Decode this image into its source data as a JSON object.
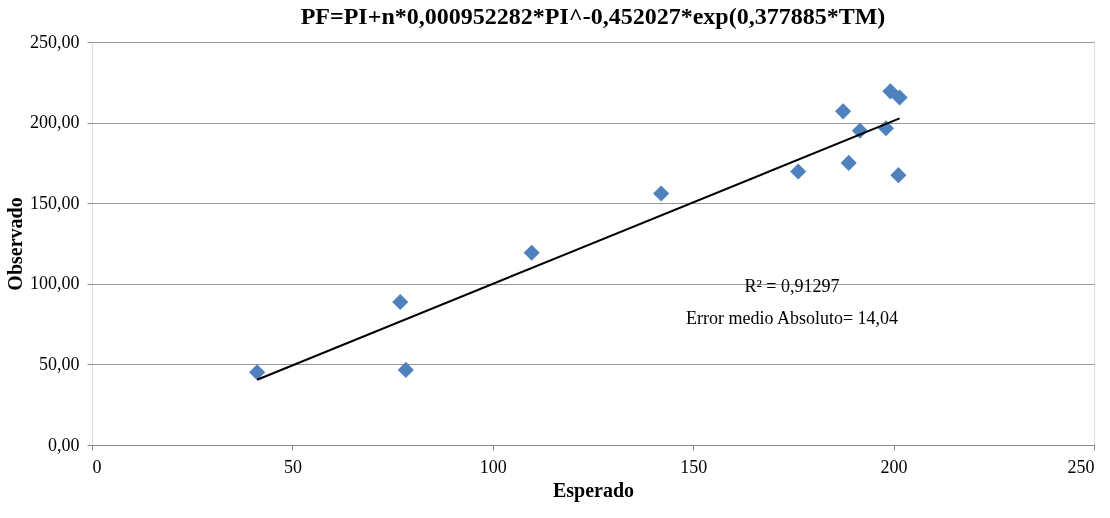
{
  "chart_data": {
    "type": "scatter",
    "title": "PF=PI+n*0,000952282*PI^-0,452027*exp(0,377885*TM)",
    "xlabel": "Esperado",
    "ylabel": "Observado",
    "xlim": [
      0,
      250
    ],
    "xticks": [
      0,
      50,
      100,
      150,
      200,
      250
    ],
    "ylim": [
      0,
      250
    ],
    "yticks": [
      {
        "value": 0,
        "label": "0,00"
      },
      {
        "value": 50,
        "label": "50,00"
      },
      {
        "value": 100,
        "label": "100,00"
      },
      {
        "value": 150,
        "label": "150,00"
      },
      {
        "value": 200,
        "label": "200,00"
      },
      {
        "value": 250,
        "label": "250,00"
      }
    ],
    "grid": "y",
    "annotations": [
      "R² = 0,91297",
      "Error medio Absoluto= 14,04"
    ],
    "series": [
      {
        "type": "scatter",
        "marker": "diamond",
        "color": "#4f81bd",
        "x": [
          41.2,
          76.9,
          78.3,
          109.7,
          142,
          176.2,
          187.4,
          188.8,
          191.6,
          198.1,
          199.2,
          201.5,
          201.2
        ],
        "values": [
          45.1,
          88.7,
          46.6,
          119.3,
          156,
          169.7,
          207,
          175,
          195,
          196.5,
          219.4,
          215.6,
          167.4
        ]
      },
      {
        "type": "line",
        "marker": "none",
        "line_style": "solid",
        "color": "#000000",
        "x": [
          41.2,
          201.5
        ],
        "values": [
          40.5,
          202.6
        ]
      }
    ]
  }
}
